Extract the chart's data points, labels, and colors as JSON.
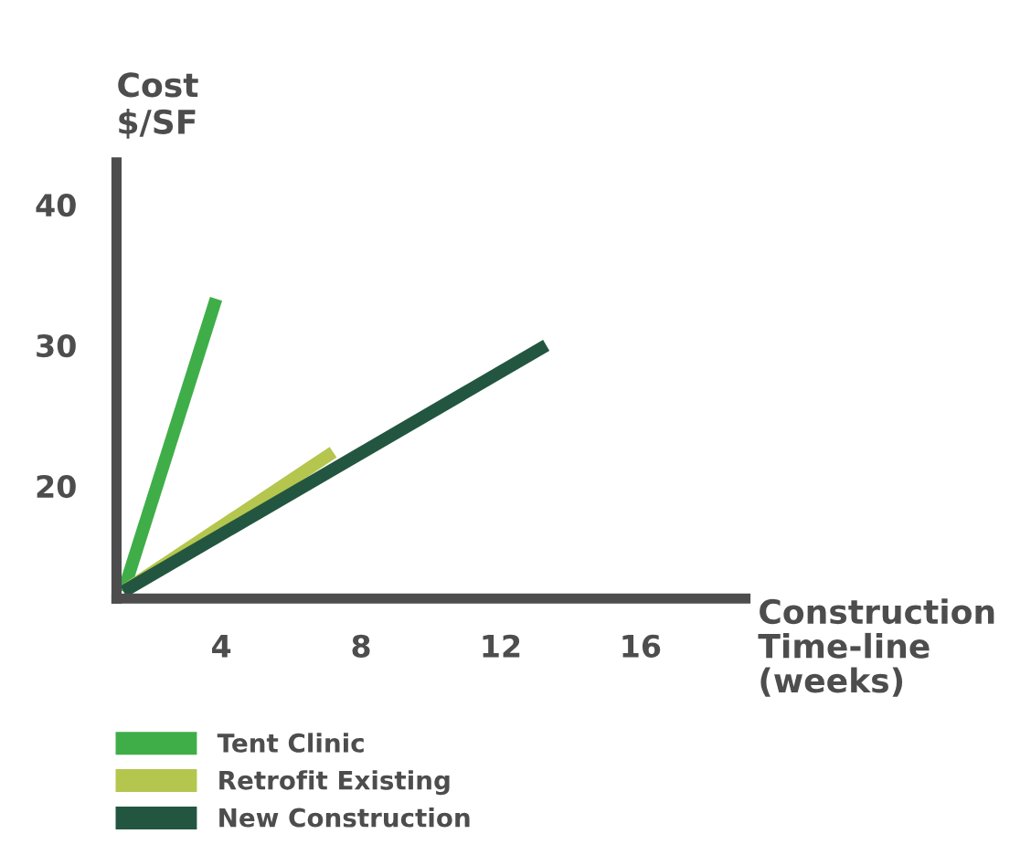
{
  "chart_data": {
    "type": "line",
    "ylabel": "Cost\n$/SF",
    "xlabel": "Construction\nTime-line\n(weeks)",
    "xlim": [
      1,
      19
    ],
    "xticks": [
      4,
      8,
      12,
      16
    ],
    "ylim": [
      12,
      43
    ],
    "yticks": [
      20,
      30,
      40
    ],
    "grid": false,
    "legend": "bottom left",
    "marker": "none",
    "line_style": "solid",
    "series": [
      {
        "name": "Tent Clinic",
        "color": "#3fae49",
        "x": [
          1.2,
          3.85
        ],
        "values": [
          12.5,
          33.3
        ]
      },
      {
        "name": "Retrofit Existing",
        "color": "#b5c64e",
        "x": [
          1.2,
          7.2
        ],
        "values": [
          12.5,
          22.4
        ]
      },
      {
        "name": "New Construction",
        "color": "#235640",
        "x": [
          1.2,
          13.3
        ],
        "values": [
          12.5,
          30
        ]
      }
    ]
  }
}
